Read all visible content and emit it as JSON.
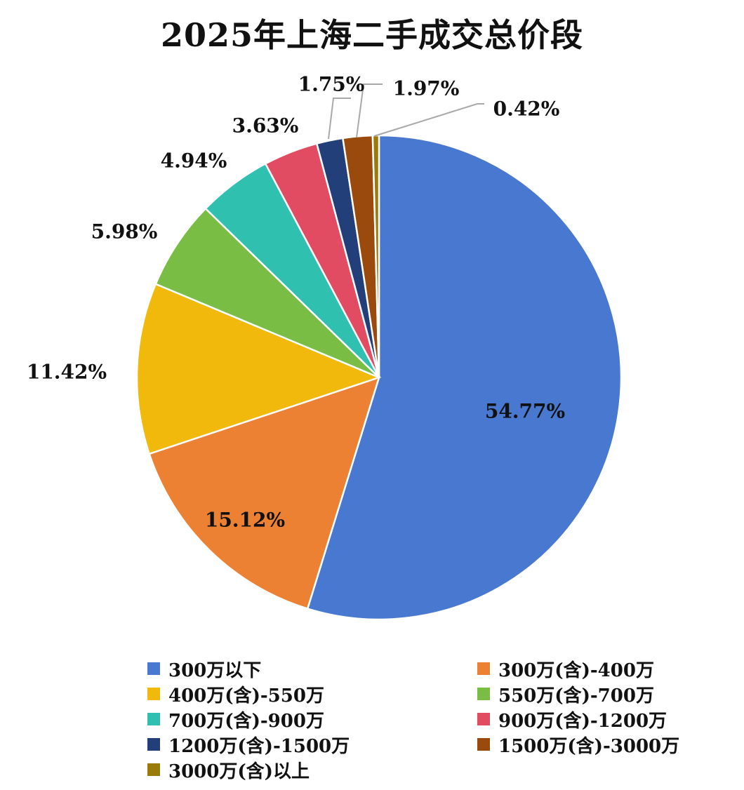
{
  "chart_data": {
    "type": "pie",
    "title": "2025年上海二手成交总价段",
    "slices": [
      {
        "label": "300万以下",
        "value": 54.77,
        "display": "54.77%",
        "color": "#4878CF"
      },
      {
        "label": "300万(含)-400万",
        "value": 15.12,
        "display": "15.12%",
        "color": "#EC8133"
      },
      {
        "label": "400万(含)-550万",
        "value": 11.42,
        "display": "11.42%",
        "color": "#F0B90B"
      },
      {
        "label": "550万(含)-700万",
        "value": 5.98,
        "display": "5.98%",
        "color": "#79BD45"
      },
      {
        "label": "700万(含)-900万",
        "value": 4.94,
        "display": "4.94%",
        "color": "#30C0B0"
      },
      {
        "label": "900万(含)-1200万",
        "value": 3.63,
        "display": "3.63%",
        "color": "#E24C62"
      },
      {
        "label": "1200万(含)-1500万",
        "value": 1.75,
        "display": "1.75%",
        "color": "#233F7A"
      },
      {
        "label": "1500万(含)-3000万",
        "value": 1.97,
        "display": "1.97%",
        "color": "#9A4A0C"
      },
      {
        "label": "3000万(含)以上",
        "value": 0.42,
        "display": "0.42%",
        "color": "#9A7A08"
      }
    ],
    "legend_position": "bottom",
    "start_angle": "12 o'clock",
    "direction": "clockwise"
  }
}
